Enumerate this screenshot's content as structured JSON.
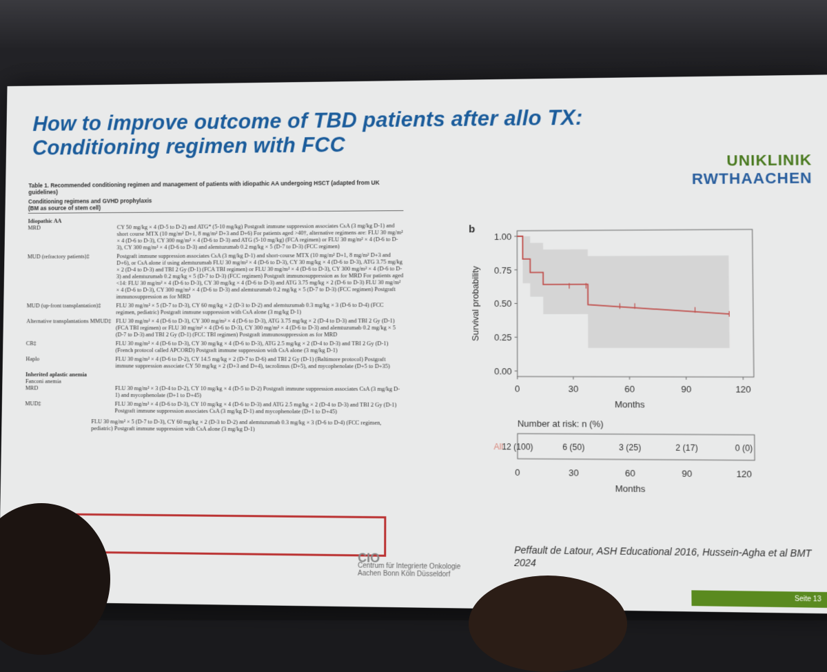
{
  "slide": {
    "title_line1": "How to improve outcome of TBD patients after allo TX:",
    "title_line2": "Conditioning regimen with FCC",
    "logo_line1": "UNIKLINIK",
    "logo_line2": "RWTHAACHEN",
    "table_caption": "Table 1. Recommended conditioning regimen and management of patients with idiopathic AA undergoing HSCT (adapted from UK guidelines)",
    "table_header_1": "Conditioning regimens and GVHD prophylaxis",
    "table_header_2": "(BM as source of stem cell)",
    "section_idiopathic": "Idiopathic AA",
    "rows": [
      {
        "label": "MRD",
        "text": "CY 50 mg/kg × 4 (D-5 to D-2) and ATG* (5-10 mg/kg) Postgraft immune suppression associates CsA (3 mg/kg D-1) and short course MTX (10 mg/m² D+1, 8 mg/m² D+3 and D+6) For patients aged >40†, alternative regimens are: FLU 30 mg/m² × 4 (D-6 to D-3), CY 300 mg/m² × 4 (D-6 to D-3) and ATG (5-10 mg/kg) (FCA regimen) or FLU 30 mg/m² × 4 (D-6 to D-3), CY 300 mg/m² × 4 (D-6 to D-3) and alemtuzumab 0.2 mg/kg × 5 (D-7 to D-3) (FCC regimen)"
      },
      {
        "label": "MUD (refractory patients)‡",
        "text": "Postgraft immune suppression associates CsA (3 mg/kg D-1) and short-course MTX (10 mg/m² D+1, 8 mg/m² D+3 and D+6), or CsA alone if using alemtuzumab FLU 30 mg/m² × 4 (D-6 to D-3), CY 30 mg/kg × 4 (D-6 to D-3), ATG 3.75 mg/kg × 2 (D-4 to D-3) and TBI 2 Gy (D-1) (FCA TBI regimen) or FLU 30 mg/m² × 4 (D-6 to D-3), CY 300 mg/m² × 4 (D-6 to D-3) and alemtuzumab 0.2 mg/kg × 5 (D-7 to D-3) (FCC regimen) Postgraft immunosuppression as for MRD For patients aged <14: FLU 30 mg/m² × 4 (D-6 to D-3), CY 30 mg/kg × 4 (D-6 to D-3) and ATG 3.75 mg/kg × 2 (D-6 to D-3) FLU 30 mg/m² × 4 (D-6 to D-3), CY 300 mg/m² × 4 (D-6 to D-3) and alemtuzumab 0.2 mg/kg × 5 (D-7 to D-3) (FCC regimen) Postgraft immunosuppression as for MRD"
      },
      {
        "label": "MUD (up-front transplantation)‡",
        "text": "FLU 30 mg/m² × 5 (D-7 to D-3), CY 60 mg/kg × 2 (D-3 to D-2) and alemtuzumab 0.3 mg/kg × 3 (D-6 to D-4) (FCC regimen, pediatric) Postgraft immune suppression with CsA alone (3 mg/kg D-1)"
      },
      {
        "label": "Alternative transplantations MMUD‡",
        "text": "FLU 30 mg/m² × 4 (D-6 to D-3), CY 300 mg/m² × 4 (D-6 to D-3), ATG 3.75 mg/kg × 2 (D-4 to D-3) and TBI 2 Gy (D-1) (FCA TBI regimen) or FLU 30 mg/m² × 4 (D-6 to D-3), CY 300 mg/m² × 4 (D-6 to D-3) and alemtuzumab 0.2 mg/kg × 5 (D-7 to D-3) and TBI 2 Gy (D-1) (FCC TBI regimen) Postgraft immunosuppression as for MRD"
      },
      {
        "label": "CB‡",
        "text": "FLU 30 mg/m² × 4 (D-6 to D-3), CY 30 mg/kg × 4 (D-6 to D-3), ATG 2.5 mg/kg × 2 (D-4 to D-3) and TBI 2 Gy (D-1) (French protocol called APCORD) Postgraft immune suppression with CsA alone (3 mg/kg D-1)"
      },
      {
        "label": "Haplo",
        "text": "FLU 30 mg/m² × 4 (D-6 to D-2), CY 14.5 mg/kg × 2 (D-7 to D-6) and TBI 2 Gy (D-1) (Baltimore protocol) Postgraft immune suppression associate CY 50 mg/kg × 2 (D+3 and D+4), tacrolimus (D+5), and mycophenolate (D+5 to D+35)"
      }
    ],
    "section_inherited": "Inherited aplastic anemia",
    "section_fanconi": "Fanconi anemia",
    "rows2": [
      {
        "label": "MRD",
        "text": "FLU 30 mg/m² × 3 (D-4 to D-2), CY 10 mg/kg × 4 (D-5 to D-2) Postgraft immune suppression associates CsA (3 mg/kg D-1) and mycophenolate (D+1 to D+45)"
      },
      {
        "label": "MUD‡",
        "text": "FLU 30 mg/m² × 4 (D-6 to D-3), CY 10 mg/kg × 4 (D-6 to D-3) and ATG 2.5 mg/kg × 2 (D-4 to D-3) and TBI 2 Gy (D-1) Postgraft immune suppression associates CsA (3 mg/kg D-1) and mycophenolate (D+1 to D+45)"
      }
    ],
    "highlight_text": "FLU 30 mg/m² × 5 (D-7 to D-3), CY 60 mg/kg × 2 (D-3 to D-2) and alemtuzumab 0.3 mg/kg × 3 (D-6 to D-4) (FCC regimen, pediatric) Postgraft immune suppression with CsA alone (3 mg/kg D-1)",
    "cio_mark": "CIO",
    "cio_line1": "Centrum für Integrierte Onkologie",
    "cio_line2": "Aachen Bonn Köln Düsseldorf",
    "citation": "Peffault de Latour, ASH Educational 2016, Hussein-Agha et al BMT 2024",
    "page_label": "Seite 13"
  },
  "chart_data": {
    "type": "line",
    "panel_label": "b",
    "ylabel": "Survival probability",
    "xlabel": "Months",
    "xlim": [
      0,
      120
    ],
    "ylim": [
      0,
      1
    ],
    "x_ticks": [
      0,
      30,
      60,
      90,
      120
    ],
    "y_ticks": [
      "0.00",
      "0.25",
      "0.50",
      "0.75",
      "1.00"
    ],
    "series": [
      {
        "step_x": [
          0,
          3,
          3,
          7,
          7,
          14,
          14,
          38,
          38,
          113
        ],
        "step_y": [
          1,
          1,
          0.83,
          0.83,
          0.73,
          0.73,
          0.64,
          0.64,
          0.49,
          0.42
        ],
        "censor_x": [
          28,
          37,
          55,
          63,
          95,
          113
        ],
        "censor_y": [
          0.63,
          0.63,
          0.48,
          0.48,
          0.45,
          0.42
        ],
        "ci_x": [
          0,
          3,
          7,
          14,
          38,
          113
        ],
        "ci_upper": [
          1,
          1,
          0.95,
          0.9,
          0.85,
          0.85
        ],
        "ci_lower": [
          1,
          0.65,
          0.55,
          0.42,
          0.17,
          0.17
        ],
        "color": "#c0504d"
      }
    ],
    "risk_table": {
      "title": "Number at risk: n (%)",
      "row_label": "All",
      "x": [
        0,
        30,
        60,
        90,
        120
      ],
      "values": [
        "12 (100)",
        "6 (50)",
        "3 (25)",
        "2 (17)",
        "0 (0)"
      ],
      "xlabel": "Months"
    }
  }
}
